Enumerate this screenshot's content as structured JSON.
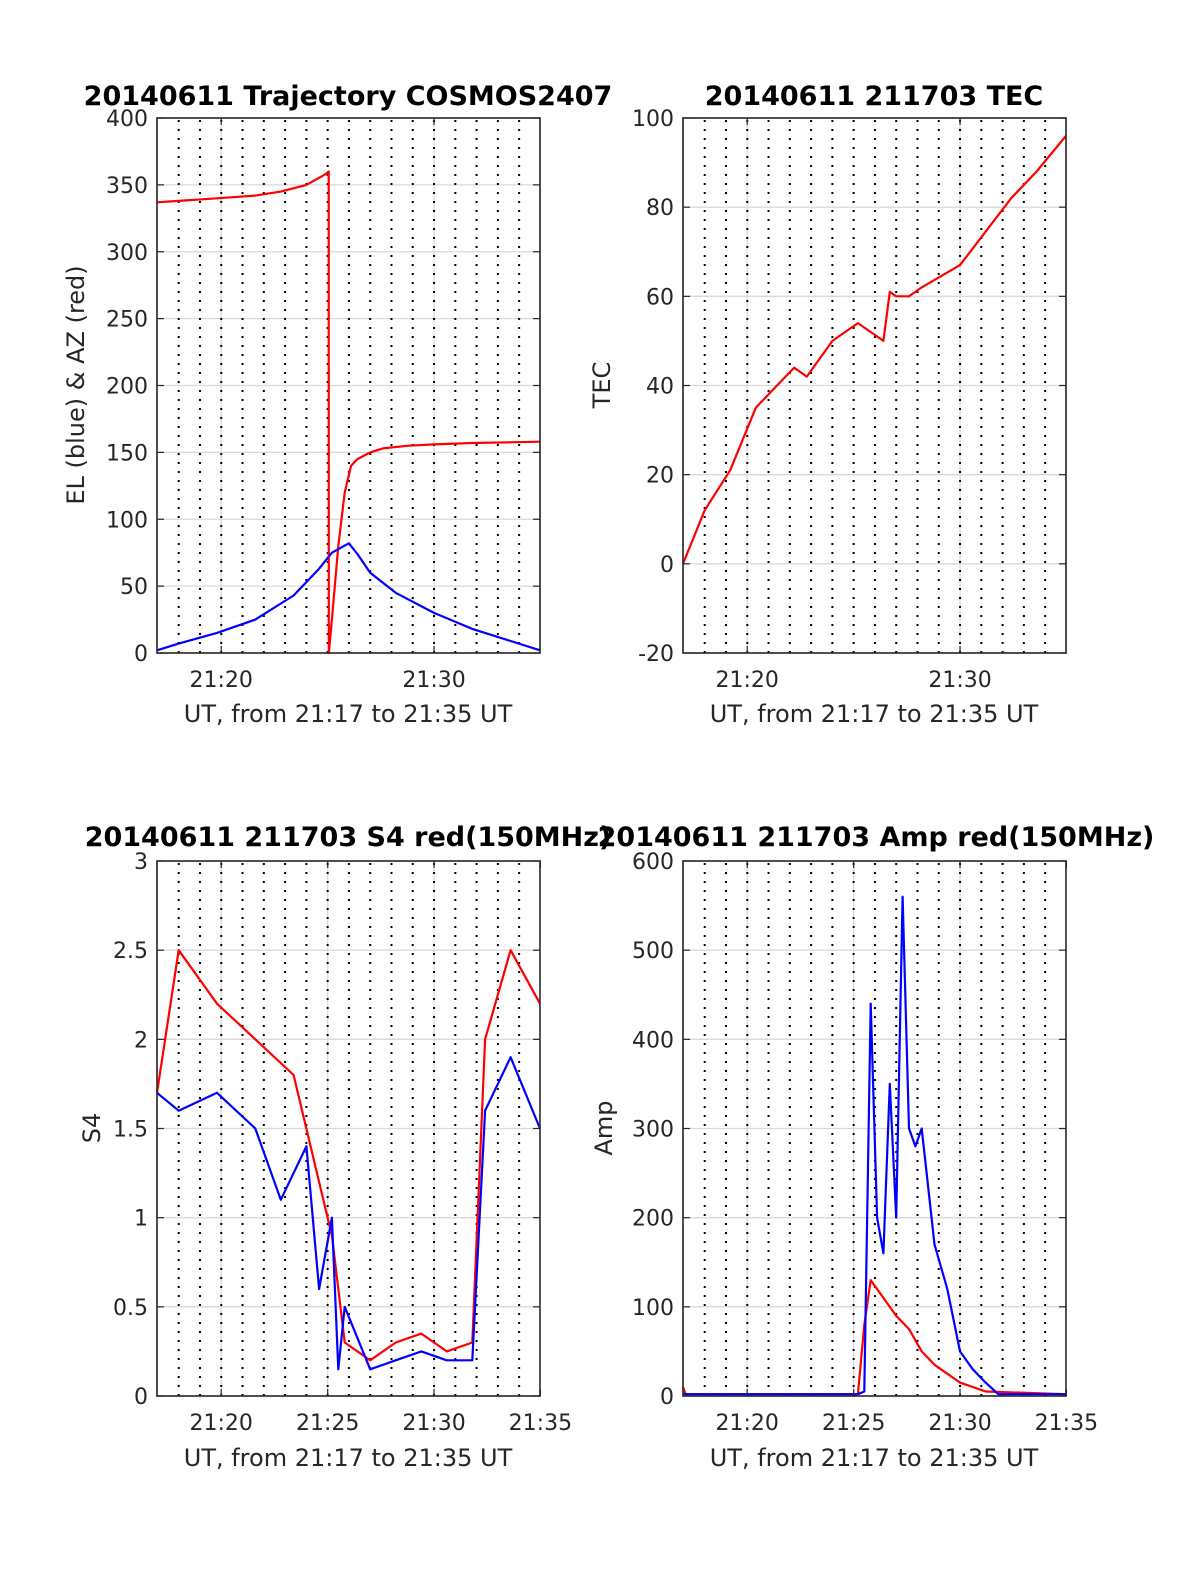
{
  "colors": {
    "red": "#ff0000",
    "blue": "#0000ff"
  },
  "chart_data": [
    {
      "id": "trajectory",
      "type": "line",
      "title": "20140611 Trajectory COSMOS2407",
      "xlabel": "UT, from 21:17 to 21:35 UT",
      "ylabel": "EL (blue) & AZ (red)",
      "xlim": [
        21.283,
        21.583
      ],
      "ylim": [
        0,
        400
      ],
      "xticks": [
        {
          "v": 21.3333,
          "label": "21:20"
        },
        {
          "v": 21.5,
          "label": "21:30"
        }
      ],
      "yticks": [
        0,
        50,
        100,
        150,
        200,
        250,
        300,
        350,
        400
      ],
      "grid": true,
      "series": [
        {
          "color": "red",
          "x": [
            21.283,
            21.3,
            21.33,
            21.36,
            21.38,
            21.4,
            21.415,
            21.4175,
            21.4176,
            21.42,
            21.425,
            21.43,
            21.435,
            21.44,
            21.45,
            21.46,
            21.48,
            21.5,
            21.53,
            21.583
          ],
          "y": [
            337,
            338,
            340,
            342,
            345,
            350,
            358,
            360,
            0,
            25,
            80,
            120,
            140,
            145,
            150,
            153,
            155,
            156,
            157,
            158
          ]
        },
        {
          "color": "blue",
          "x": [
            21.283,
            21.3,
            21.33,
            21.36,
            21.39,
            21.41,
            21.42,
            21.4333,
            21.44,
            21.45,
            21.47,
            21.5,
            21.53,
            21.56,
            21.583
          ],
          "y": [
            2,
            7,
            15,
            25,
            43,
            63,
            75,
            82,
            74,
            60,
            45,
            30,
            18,
            9,
            2
          ]
        }
      ]
    },
    {
      "id": "tec",
      "type": "line",
      "title": "20140611 211703 TEC",
      "xlabel": "UT, from 21:17 to 21:35 UT",
      "ylabel": "TEC",
      "xlim": [
        21.283,
        21.583
      ],
      "ylim": [
        -20,
        100
      ],
      "xticks": [
        {
          "v": 21.3333,
          "label": "21:20"
        },
        {
          "v": 21.5,
          "label": "21:30"
        }
      ],
      "yticks": [
        -20,
        0,
        20,
        40,
        60,
        80,
        100
      ],
      "grid": true,
      "series": [
        {
          "color": "red",
          "x": [
            21.283,
            21.3,
            21.32,
            21.34,
            21.35,
            21.37,
            21.38,
            21.4,
            21.42,
            21.44,
            21.445,
            21.45,
            21.46,
            21.47,
            21.5,
            21.54,
            21.56,
            21.583
          ],
          "y": [
            0,
            12,
            21,
            35,
            38,
            44,
            42,
            50,
            54,
            50,
            61,
            60,
            60,
            62,
            67,
            82,
            88,
            96
          ]
        }
      ]
    },
    {
      "id": "s4",
      "type": "line",
      "title": "20140611 211703 S4 red(150MHz)",
      "xlabel": "UT, from 21:17 to 21:35 UT",
      "ylabel": "S4",
      "xlim": [
        21.283,
        21.583
      ],
      "ylim": [
        0,
        3
      ],
      "xticks": [
        {
          "v": 21.3333,
          "label": "21:20"
        },
        {
          "v": 21.4167,
          "label": "21:25"
        },
        {
          "v": 21.5,
          "label": "21:30"
        },
        {
          "v": 21.5833,
          "label": "21:35"
        }
      ],
      "yticks": [
        0,
        0.5,
        1,
        1.5,
        2,
        2.5,
        3
      ],
      "grid": true,
      "series": [
        {
          "color": "red",
          "x": [
            21.283,
            21.3,
            21.33,
            21.36,
            21.39,
            21.41,
            21.42,
            21.43,
            21.45,
            21.47,
            21.49,
            21.51,
            21.53,
            21.54,
            21.56,
            21.583
          ],
          "y": [
            1.7,
            2.5,
            2.2,
            2.0,
            1.8,
            1.2,
            0.9,
            0.3,
            0.2,
            0.3,
            0.35,
            0.25,
            0.3,
            2.0,
            2.5,
            2.2
          ]
        },
        {
          "color": "blue",
          "x": [
            21.283,
            21.3,
            21.33,
            21.36,
            21.38,
            21.4,
            21.41,
            21.42,
            21.425,
            21.43,
            21.45,
            21.47,
            21.49,
            21.51,
            21.53,
            21.54,
            21.56,
            21.583
          ],
          "y": [
            1.7,
            1.6,
            1.7,
            1.5,
            1.1,
            1.4,
            0.6,
            1.0,
            0.15,
            0.5,
            0.15,
            0.2,
            0.25,
            0.2,
            0.2,
            1.6,
            1.9,
            1.5
          ]
        }
      ]
    },
    {
      "id": "amp",
      "type": "line",
      "title": "20140611 211703 Amp red(150MHz)",
      "xlabel": "UT, from 21:17 to 21:35 UT",
      "ylabel": "Amp",
      "xlim": [
        21.283,
        21.583
      ],
      "ylim": [
        0,
        600
      ],
      "xticks": [
        {
          "v": 21.3333,
          "label": "21:20"
        },
        {
          "v": 21.4167,
          "label": "21:25"
        },
        {
          "v": 21.5,
          "label": "21:30"
        },
        {
          "v": 21.5833,
          "label": "21:35"
        }
      ],
      "yticks": [
        0,
        100,
        200,
        300,
        400,
        500,
        600
      ],
      "grid": true,
      "series": [
        {
          "color": "red",
          "x": [
            21.283,
            21.285,
            21.3,
            21.4,
            21.42,
            21.425,
            21.43,
            21.44,
            21.45,
            21.46,
            21.47,
            21.48,
            21.49,
            21.5,
            21.52,
            21.583
          ],
          "y": [
            10,
            2,
            2,
            2,
            2,
            80,
            130,
            110,
            90,
            75,
            50,
            35,
            25,
            15,
            5,
            2
          ]
        },
        {
          "color": "blue",
          "x": [
            21.283,
            21.3,
            21.4,
            21.42,
            21.425,
            21.43,
            21.435,
            21.44,
            21.445,
            21.45,
            21.455,
            21.46,
            21.465,
            21.47,
            21.48,
            21.49,
            21.5,
            21.51,
            21.52,
            21.53,
            21.583
          ],
          "y": [
            2,
            2,
            2,
            2,
            5,
            440,
            200,
            160,
            350,
            200,
            560,
            300,
            280,
            300,
            170,
            120,
            50,
            30,
            15,
            2,
            2
          ]
        }
      ]
    }
  ]
}
